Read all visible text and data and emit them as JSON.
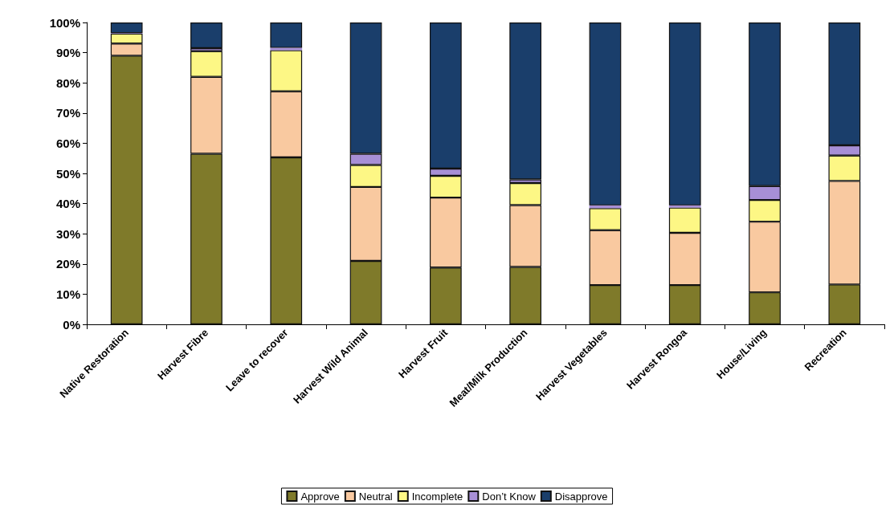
{
  "chart_data": {
    "type": "bar",
    "stacked": true,
    "categories": [
      "Native Restoration",
      "Harvest Fibre",
      "Leave to recover",
      "Harvest Wild Animal",
      "Harvest Fruit",
      "Meat/Milk Production",
      "Harvest Vegetables",
      "Harvest Rongoa",
      "House/Living",
      "Recreation"
    ],
    "series": [
      {
        "name": "Approve",
        "color": "#7f7a2a",
        "values": [
          89,
          56.5,
          55.3,
          21,
          18.8,
          19,
          13,
          13,
          10.6,
          13.2
        ]
      },
      {
        "name": "Neutral",
        "color": "#f9c9a0",
        "values": [
          4,
          25.5,
          21.9,
          24.5,
          23.2,
          20.5,
          18.2,
          17.3,
          23.4,
          34.3
        ]
      },
      {
        "name": "Incomplete",
        "color": "#fdf785",
        "values": [
          3.3,
          8.5,
          13.6,
          7.3,
          7.2,
          7.3,
          7.3,
          8.4,
          7.2,
          8.4
        ]
      },
      {
        "name": "Don’t Know",
        "color": "#a78fd6",
        "values": [
          0.2,
          1,
          0.8,
          3.7,
          2.4,
          1.2,
          0.9,
          0.7,
          4.6,
          3.4
        ]
      },
      {
        "name": "Disapprove",
        "color": "#1a3e6b",
        "values": [
          3.5,
          8.5,
          8.4,
          43.5,
          48.4,
          52,
          60.6,
          60.6,
          54.2,
          40.7
        ]
      }
    ],
    "ylim": [
      0,
      100
    ],
    "yticks": [
      {
        "value": 0,
        "label": "0%"
      },
      {
        "value": 10,
        "label": "10%"
      },
      {
        "value": 20,
        "label": "20%"
      },
      {
        "value": 30,
        "label": "30%"
      },
      {
        "value": 40,
        "label": "40%"
      },
      {
        "value": 50,
        "label": "50%"
      },
      {
        "value": 60,
        "label": "60%"
      },
      {
        "value": 70,
        "label": "70%"
      },
      {
        "value": 80,
        "label": "80%"
      },
      {
        "value": 90,
        "label": "90%"
      },
      {
        "value": 100,
        "label": "100%"
      }
    ],
    "grid": false,
    "legend": "bottom"
  }
}
